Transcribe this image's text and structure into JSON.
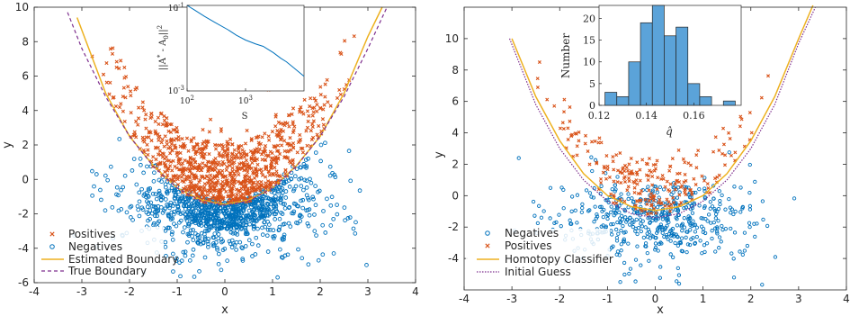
{
  "colors": {
    "positives": "#d95319",
    "negatives": "#0072bd",
    "estimated_boundary": "#edb120",
    "true_boundary": "#7e2f8e",
    "homotopy_classifier": "#edb120",
    "initial_guess": "#7e2f8e",
    "histogram_bars": "#5ba3d9"
  },
  "chart_data": [
    {
      "type": "scatter",
      "xlabel": "x",
      "ylabel": "y",
      "xlim": [
        -4,
        4
      ],
      "ylim": [
        -6,
        10
      ],
      "x_ticks": [
        "-4",
        "-3",
        "-2",
        "-1",
        "0",
        "1",
        "2",
        "3",
        "4"
      ],
      "y_ticks": [
        "-6",
        "-4",
        "-2",
        "0",
        "2",
        "4",
        "6",
        "8",
        "10"
      ],
      "legend_position": "bottom-left",
      "series": [
        {
          "name": "Positives",
          "kind": "points",
          "marker": "x",
          "description": "points above the boundary, approx x in [-3.2, 3.2], y roughly from x^2 - 1.5 up to 9"
        },
        {
          "name": "Negatives",
          "kind": "points",
          "marker": "o",
          "description": "points below the boundary, approx x in [-3.2, 2.7], y from about -5.6 up to the boundary"
        },
        {
          "name": "Estimated Boundary",
          "kind": "curve",
          "x": [
            -3.1,
            -2.5,
            -2,
            -1.5,
            -1,
            -0.5,
            0,
            0.5,
            1,
            1.5,
            2,
            2.5,
            3,
            3.3
          ],
          "y": [
            9.4,
            5.0,
            2.5,
            0.8,
            -0.5,
            -1.2,
            -1.45,
            -1.2,
            -0.5,
            0.8,
            2.5,
            5.0,
            8.3,
            10.0
          ]
        },
        {
          "name": "True Boundary",
          "kind": "curve",
          "x": [
            -3.3,
            -3,
            -2.5,
            -2,
            -1.5,
            -1,
            -0.5,
            0,
            0.5,
            1,
            1.5,
            2,
            2.5,
            3,
            3.4
          ],
          "y": [
            9.7,
            7.6,
            4.8,
            2.5,
            0.75,
            -0.5,
            -1.25,
            -1.5,
            -1.25,
            -0.5,
            0.75,
            2.5,
            4.8,
            7.6,
            10.0
          ]
        }
      ],
      "inset": {
        "type": "line",
        "xlabel": "S",
        "ylabel": "||A* - A0||^2",
        "x_scale": "log",
        "y_scale": "log",
        "xlim": [
          100,
          10000
        ],
        "ylim": [
          0.001,
          0.1
        ],
        "x_ticks": [
          "10^2",
          "10^3"
        ],
        "y_ticks": [
          "10^-1",
          "10^-3"
        ],
        "x": [
          100,
          130,
          200,
          300,
          500,
          700,
          1000,
          1500,
          2000,
          3000,
          4000,
          5000,
          7000,
          10000
        ],
        "y": [
          0.1,
          0.08,
          0.055,
          0.04,
          0.027,
          0.02,
          0.0155,
          0.0125,
          0.011,
          0.0078,
          0.0058,
          0.0048,
          0.0033,
          0.0022
        ]
      }
    },
    {
      "type": "scatter",
      "xlabel": "x",
      "ylabel": "y",
      "xlim": [
        -4,
        4
      ],
      "ylim": [
        -6,
        12
      ],
      "x_ticks": [
        "-4",
        "-3",
        "-2",
        "-1",
        "0",
        "1",
        "2",
        "3",
        "4"
      ],
      "y_ticks": [
        "-4",
        "-2",
        "0",
        "2",
        "4",
        "6",
        "8",
        "10"
      ],
      "legend_position": "bottom-left",
      "series": [
        {
          "name": "Negatives",
          "kind": "points",
          "marker": "o",
          "description": "points mostly below the boundary, approx x in [-3, 2.9], y from about -5.6 up to about 4"
        },
        {
          "name": "Positives",
          "kind": "points",
          "marker": "x",
          "description": "points above the boundary, approx x in [-3, 3], y roughly from -0.5 up to 8.6"
        },
        {
          "name": "Homotopy Classifier",
          "kind": "curve",
          "x": [
            -3.0,
            -2.5,
            -2,
            -1.5,
            -1,
            -0.5,
            0,
            0.5,
            1,
            1.5,
            2,
            2.5,
            3,
            3.3
          ],
          "y": [
            10.0,
            6.3,
            3.5,
            1.4,
            0.0,
            -0.7,
            -0.95,
            -0.7,
            0.0,
            1.4,
            3.5,
            6.3,
            10.0,
            12.3
          ]
        },
        {
          "name": "Initial Guess",
          "kind": "curve",
          "x": [
            -3.05,
            -2.5,
            -2,
            -1.5,
            -1,
            -0.5,
            0,
            0.5,
            1,
            1.5,
            2,
            2.5,
            3,
            3.35
          ],
          "y": [
            10.0,
            5.8,
            3.0,
            1.0,
            -0.35,
            -1.15,
            -1.4,
            -1.15,
            -0.35,
            1.0,
            3.0,
            5.8,
            9.7,
            12.0
          ]
        }
      ],
      "inset": {
        "type": "bar",
        "xlabel": "q̂",
        "ylabel": "Number",
        "xlim": [
          0.12,
          0.18
        ],
        "ylim": [
          0,
          23
        ],
        "x_ticks": [
          "0.12",
          "0.14",
          "0.16"
        ],
        "y_ticks": [
          "0",
          "5",
          "10",
          "15",
          "20"
        ],
        "bin_edges": [
          0.1225,
          0.1275,
          0.1325,
          0.1375,
          0.1425,
          0.1475,
          0.1525,
          0.1575,
          0.1625,
          0.1675,
          0.1725,
          0.1775
        ],
        "values": [
          3,
          2,
          10,
          19,
          23,
          16,
          18,
          5,
          2,
          0,
          1
        ]
      }
    }
  ]
}
